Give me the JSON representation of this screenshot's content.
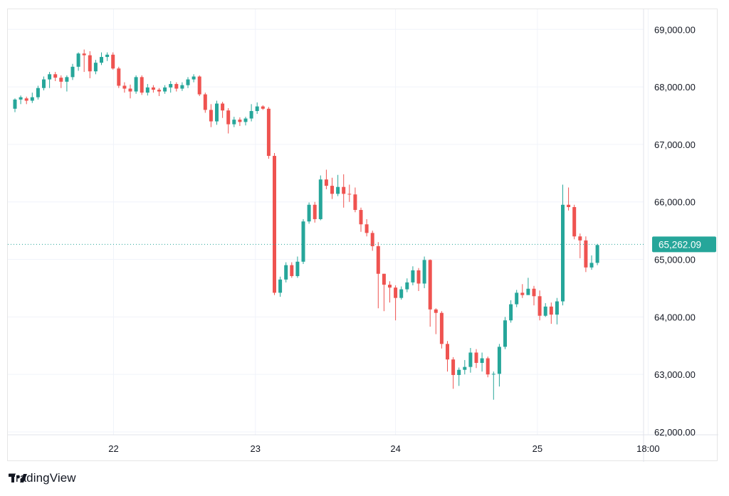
{
  "chart_data": {
    "type": "candlestick",
    "y_unit": "USD",
    "ylim": [
      61950,
      69350
    ],
    "grid": true,
    "y_ticks": [
      "69,000.00",
      "68,000.00",
      "67,000.00",
      "66,000.00",
      "65,000.00",
      "64,000.00",
      "63,000.00",
      "62,000.00"
    ],
    "y_tick_values": [
      69000,
      68000,
      67000,
      66000,
      65000,
      64000,
      63000,
      62000
    ],
    "x_ticks": [
      "22",
      "23",
      "24",
      "25",
      "18:00"
    ],
    "x_tick_index": [
      17.1,
      41.7,
      66.0,
      90.6,
      109.8
    ],
    "last_price": 65262.09,
    "last_price_label": "65,262.09",
    "up_color": "#26a69a",
    "down_color": "#ef5350",
    "candles": [
      [
        67620,
        67780,
        67560,
        67800
      ],
      [
        67780,
        67820,
        67700,
        67850
      ],
      [
        67800,
        67760,
        67700,
        67830
      ],
      [
        67760,
        67820,
        67720,
        67900
      ],
      [
        67820,
        67980,
        67780,
        68020
      ],
      [
        67980,
        68130,
        67940,
        68180
      ],
      [
        68130,
        68220,
        67980,
        68260
      ],
      [
        68220,
        68160,
        68100,
        68260
      ],
      [
        68160,
        68090,
        67980,
        68200
      ],
      [
        68090,
        68170,
        67920,
        68200
      ],
      [
        68170,
        68350,
        68120,
        68400
      ],
      [
        68350,
        68580,
        68280,
        68600
      ],
      [
        68580,
        68550,
        68260,
        68650
      ],
      [
        68550,
        68270,
        68150,
        68620
      ],
      [
        68270,
        68420,
        68220,
        68470
      ],
      [
        68420,
        68520,
        68380,
        68600
      ],
      [
        68520,
        68560,
        68450,
        68600
      ],
      [
        68560,
        68320,
        68300,
        68600
      ],
      [
        68320,
        68020,
        67980,
        68350
      ],
      [
        68020,
        67970,
        67900,
        68080
      ],
      [
        67970,
        67920,
        67800,
        68040
      ],
      [
        67920,
        68170,
        67880,
        68200
      ],
      [
        68170,
        67900,
        67860,
        68200
      ],
      [
        67900,
        67990,
        67850,
        68050
      ],
      [
        67990,
        67950,
        67900,
        68030
      ],
      [
        67950,
        67920,
        67840,
        67980
      ],
      [
        67920,
        67990,
        67880,
        68030
      ],
      [
        67990,
        68050,
        67900,
        68100
      ],
      [
        68050,
        67970,
        67920,
        68080
      ],
      [
        67970,
        68030,
        67930,
        68080
      ],
      [
        68030,
        68130,
        67980,
        68170
      ],
      [
        68130,
        68180,
        68080,
        68220
      ],
      [
        68180,
        67870,
        67840,
        68200
      ],
      [
        67870,
        67600,
        67550,
        67900
      ],
      [
        67600,
        67400,
        67300,
        67700
      ],
      [
        67400,
        67710,
        67340,
        67760
      ],
      [
        67710,
        67590,
        67460,
        67740
      ],
      [
        67590,
        67350,
        67190,
        67630
      ],
      [
        67350,
        67430,
        67300,
        67480
      ],
      [
        67430,
        67390,
        67320,
        67470
      ],
      [
        67390,
        67450,
        67330,
        67480
      ],
      [
        67450,
        67580,
        67400,
        67700
      ],
      [
        67580,
        67660,
        67530,
        67730
      ],
      [
        67660,
        67620,
        67600,
        67680
      ],
      [
        67620,
        66800,
        66750,
        67650
      ],
      [
        66800,
        64420,
        64380,
        66850
      ],
      [
        64420,
        64650,
        64350,
        64700
      ],
      [
        64650,
        64900,
        64600,
        64950
      ],
      [
        64900,
        64710,
        64680,
        64950
      ],
      [
        64710,
        64960,
        64680,
        65050
      ],
      [
        64960,
        65660,
        64920,
        65700
      ],
      [
        65660,
        65950,
        65620,
        65990
      ],
      [
        65950,
        65700,
        65640,
        66000
      ],
      [
        65700,
        66390,
        65680,
        66460
      ],
      [
        66390,
        66280,
        66220,
        66560
      ],
      [
        66280,
        66140,
        66050,
        66420
      ],
      [
        66140,
        66260,
        66100,
        66470
      ],
      [
        66260,
        66140,
        65900,
        66480
      ],
      [
        66140,
        66130,
        66000,
        66300
      ],
      [
        66130,
        65860,
        65820,
        66250
      ],
      [
        65860,
        65610,
        65480,
        65900
      ],
      [
        65610,
        65460,
        65400,
        65700
      ],
      [
        65460,
        65230,
        65150,
        65500
      ],
      [
        65230,
        64750,
        64150,
        65300
      ],
      [
        64750,
        64560,
        64100,
        64750
      ],
      [
        64560,
        64510,
        64250,
        64620
      ],
      [
        64510,
        64330,
        63940,
        64550
      ],
      [
        64330,
        64480,
        64300,
        64530
      ],
      [
        64480,
        64600,
        64430,
        64670
      ],
      [
        64600,
        64810,
        64550,
        64880
      ],
      [
        64810,
        64580,
        64450,
        64850
      ],
      [
        64580,
        64990,
        64500,
        65050
      ],
      [
        64990,
        64130,
        63830,
        65000
      ],
      [
        64130,
        64070,
        63700,
        64150
      ],
      [
        64070,
        63530,
        63450,
        64100
      ],
      [
        63530,
        63260,
        63050,
        63580
      ],
      [
        63260,
        62990,
        62750,
        63300
      ],
      [
        62990,
        63080,
        62800,
        63120
      ],
      [
        63080,
        63130,
        63000,
        63250
      ],
      [
        63130,
        63380,
        63030,
        63460
      ],
      [
        63380,
        63200,
        63110,
        63440
      ],
      [
        63200,
        63280,
        63050,
        63380
      ],
      [
        63280,
        63000,
        62950,
        63310
      ],
      [
        63000,
        63010,
        62560,
        63050
      ],
      [
        63010,
        63480,
        62790,
        63530
      ],
      [
        63480,
        63940,
        63440,
        64000
      ],
      [
        63940,
        64220,
        63900,
        64290
      ],
      [
        64220,
        64420,
        64170,
        64470
      ],
      [
        64420,
        64380,
        64330,
        64570
      ],
      [
        64380,
        64490,
        64450,
        64680
      ],
      [
        64490,
        64360,
        64200,
        64540
      ],
      [
        64360,
        64020,
        63940,
        64460
      ],
      [
        64020,
        64180,
        64000,
        64240
      ],
      [
        64180,
        64040,
        63880,
        64250
      ],
      [
        64040,
        64270,
        63870,
        64330
      ],
      [
        64270,
        65950,
        64200,
        66300
      ],
      [
        65950,
        65910,
        65850,
        66250
      ],
      [
        65910,
        65400,
        65350,
        65950
      ],
      [
        65400,
        65330,
        65020,
        65450
      ],
      [
        65330,
        64860,
        64780,
        65400
      ],
      [
        64860,
        64940,
        64820,
        65070
      ],
      [
        64940,
        65250,
        64900,
        65270
      ]
    ]
  }
}
